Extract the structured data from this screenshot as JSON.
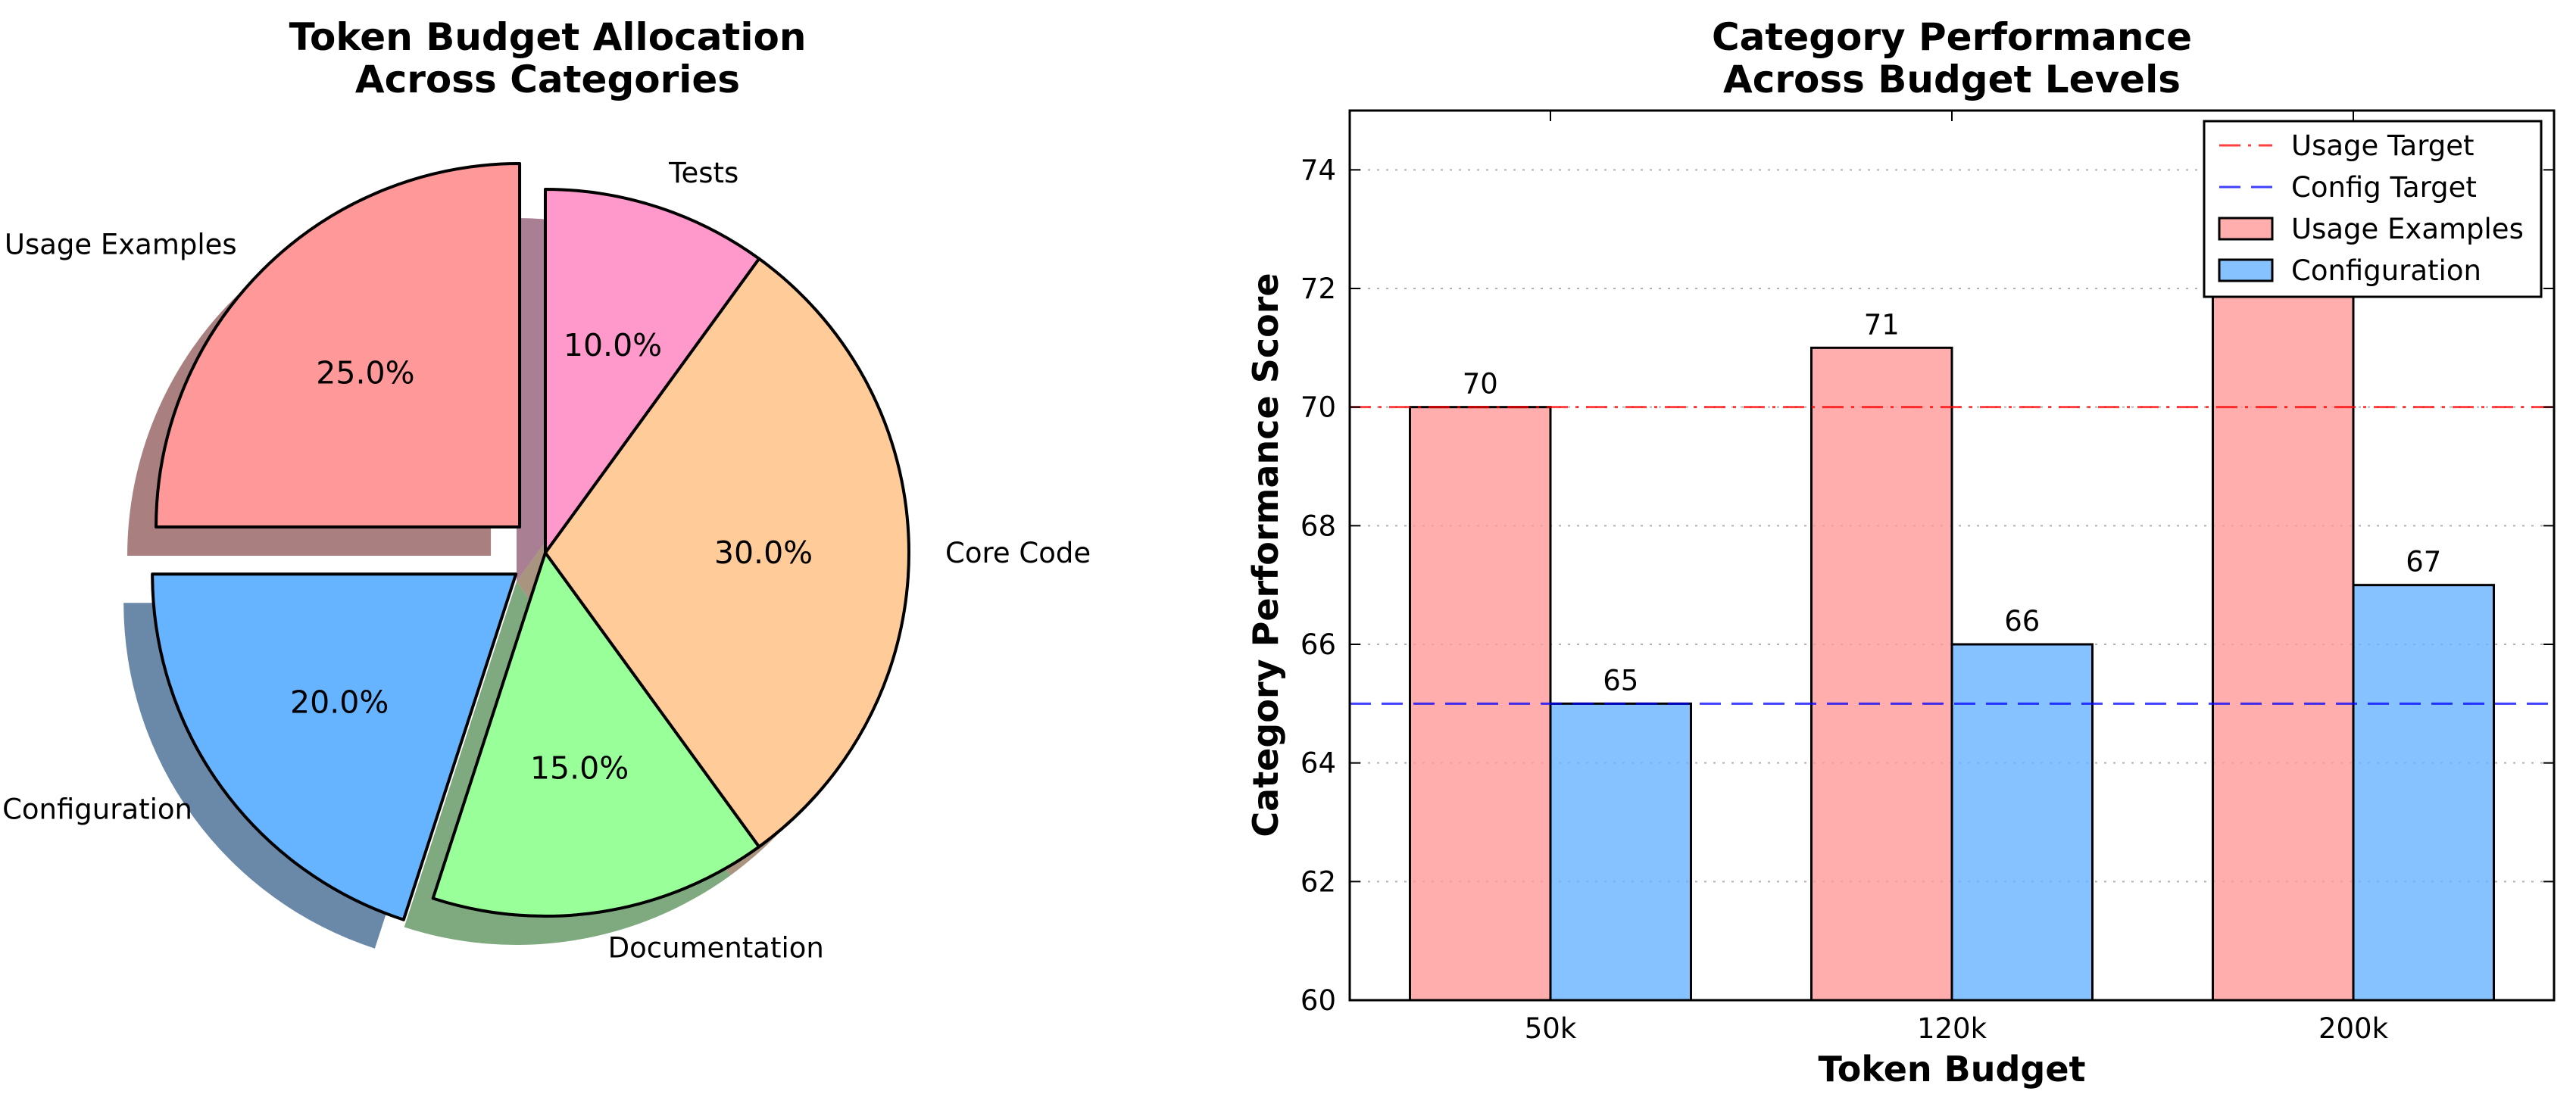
{
  "chart_data": [
    {
      "type": "pie",
      "title_lines": [
        "Token Budget Allocation",
        "Across Categories"
      ],
      "slices": [
        {
          "label": "Usage Examples",
          "value": 25.0,
          "pct_label": "25.0%",
          "color": "#ff9999",
          "exploded": true
        },
        {
          "label": "Configuration",
          "value": 20.0,
          "pct_label": "20.0%",
          "color": "#66b3ff",
          "exploded": true
        },
        {
          "label": "Documentation",
          "value": 15.0,
          "pct_label": "15.0%",
          "color": "#99ff99",
          "exploded": false
        },
        {
          "label": "Core Code",
          "value": 30.0,
          "pct_label": "30.0%",
          "color": "#ffcc99",
          "exploded": false
        },
        {
          "label": "Tests",
          "value": 10.0,
          "pct_label": "10.0%",
          "color": "#ff99cc",
          "exploded": false
        }
      ],
      "start_angle_deg": 90,
      "direction": "counterclockwise",
      "shadow": true
    },
    {
      "type": "bar",
      "title_lines": [
        "Category Performance",
        "Across Budget Levels"
      ],
      "xlabel": "Token Budget",
      "ylabel": "Category Performance Score",
      "categories": [
        "50k",
        "120k",
        "200k"
      ],
      "series": [
        {
          "name": "Usage Examples",
          "values": [
            70,
            71,
            72
          ],
          "value_labels": [
            "70",
            "71",
            ""
          ],
          "color": "#ff9999"
        },
        {
          "name": "Configuration",
          "values": [
            65,
            66,
            67
          ],
          "value_labels": [
            "65",
            "66",
            "67"
          ],
          "color": "#66b3ff"
        }
      ],
      "ylim": [
        60,
        75
      ],
      "yticks": [
        60,
        62,
        64,
        66,
        68,
        70,
        72,
        74
      ],
      "hlines": [
        {
          "name": "Usage Target",
          "y": 70,
          "color": "#ff0000",
          "style": "dashdot"
        },
        {
          "name": "Config Target",
          "y": 65,
          "color": "#0000ff",
          "style": "dashed"
        }
      ],
      "grid": "y-dotted",
      "legend_position": "top-right"
    }
  ]
}
